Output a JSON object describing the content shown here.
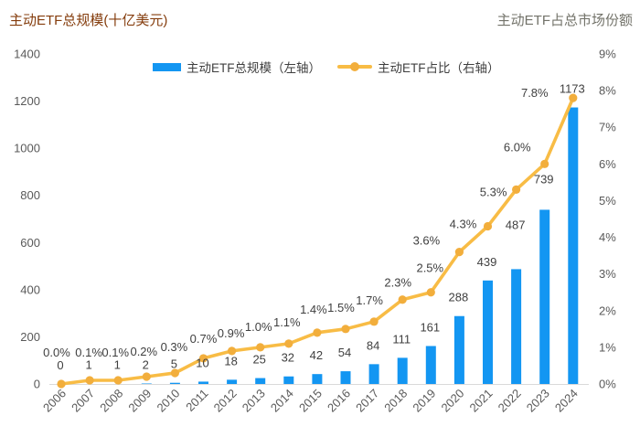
{
  "colors": {
    "bar": "#1396F2",
    "line": "#F8BC45",
    "dot": "#F2AE3C",
    "left_title": "#843C0C",
    "right_title": "#73736A",
    "axis_text": "#595959",
    "label_text": "#3F3F3F",
    "axis_line": "#D9D9D9"
  },
  "chart_data": {
    "type": "combo",
    "title": "",
    "categories": [
      "2006",
      "2007",
      "2008",
      "2009",
      "2010",
      "2011",
      "2012",
      "2013",
      "2014",
      "2015",
      "2016",
      "2017",
      "2018",
      "2019",
      "2020",
      "2021",
      "2022",
      "2023",
      "2024"
    ],
    "series": [
      {
        "name": "主动ETF总规模（左轴）",
        "type": "bar",
        "axis": "left",
        "values": [
          0,
          1,
          1,
          2,
          5,
          10,
          18,
          25,
          32,
          42,
          54,
          84,
          111,
          161,
          288,
          439,
          487,
          739,
          1173
        ],
        "value_labels": [
          "0",
          "1",
          "1",
          "2",
          "5",
          "10",
          "18",
          "25",
          "32",
          "42",
          "54",
          "84",
          "111",
          "161",
          "288",
          "439",
          "487",
          "739",
          "1173"
        ]
      },
      {
        "name": "主动ETF占比（右轴）",
        "type": "line",
        "axis": "right",
        "values": [
          0.0,
          0.1,
          0.1,
          0.2,
          0.3,
          0.7,
          0.9,
          1.0,
          1.1,
          1.4,
          1.5,
          1.7,
          2.3,
          2.5,
          3.6,
          4.3,
          5.3,
          6.0,
          7.8
        ],
        "value_labels": [
          "0.0%",
          "0.1%",
          "0.1%",
          "0.2%",
          "0.3%",
          "0.7%",
          "0.9%",
          "1.0%",
          "1.1%",
          "1.4%",
          "1.5%",
          "1.7%",
          "2.3%",
          "2.5%",
          "3.6%",
          "4.3%",
          "5.3%",
          "6.0%",
          "7.8%"
        ]
      }
    ],
    "left_axis": {
      "title": "主动ETF总规模(十亿美元)",
      "min": 0,
      "max": 1400,
      "tick_step": 200,
      "tick_labels": [
        "0",
        "200",
        "400",
        "600",
        "800",
        "1000",
        "1200",
        "1400"
      ]
    },
    "right_axis": {
      "title": "主动ETF占总市场份额",
      "min": 0,
      "max": 9,
      "tick_step": 1,
      "tick_labels": [
        "0%",
        "1%",
        "2%",
        "3%",
        "4%",
        "5%",
        "6%",
        "7%",
        "8%",
        "9%"
      ]
    },
    "grid": false,
    "legend_position": "top"
  }
}
